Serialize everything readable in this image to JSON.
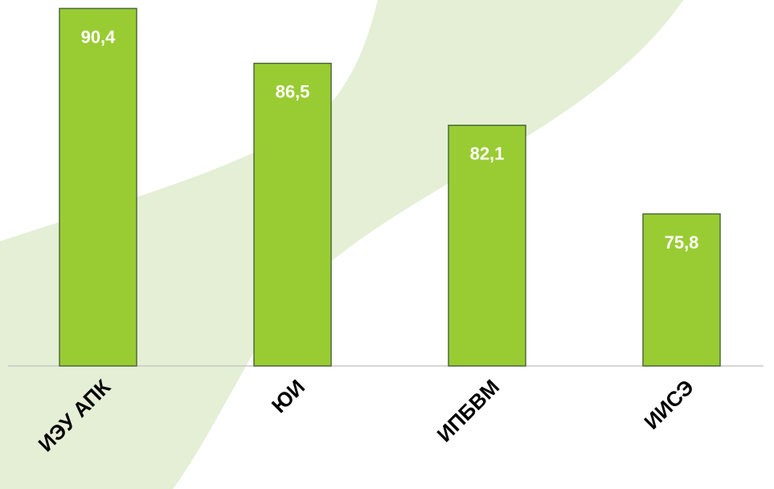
{
  "chart_data": {
    "type": "bar",
    "categories": [
      "ИЭУ АПК",
      "ЮИ",
      "ИПБВМ",
      "ИИСЭ"
    ],
    "values": [
      90.4,
      86.5,
      82.1,
      75.8
    ],
    "value_labels": [
      "90,4",
      "86,5",
      "82,1",
      "75,8"
    ],
    "color": "#99cc33",
    "ylim": [
      65,
      91
    ]
  }
}
